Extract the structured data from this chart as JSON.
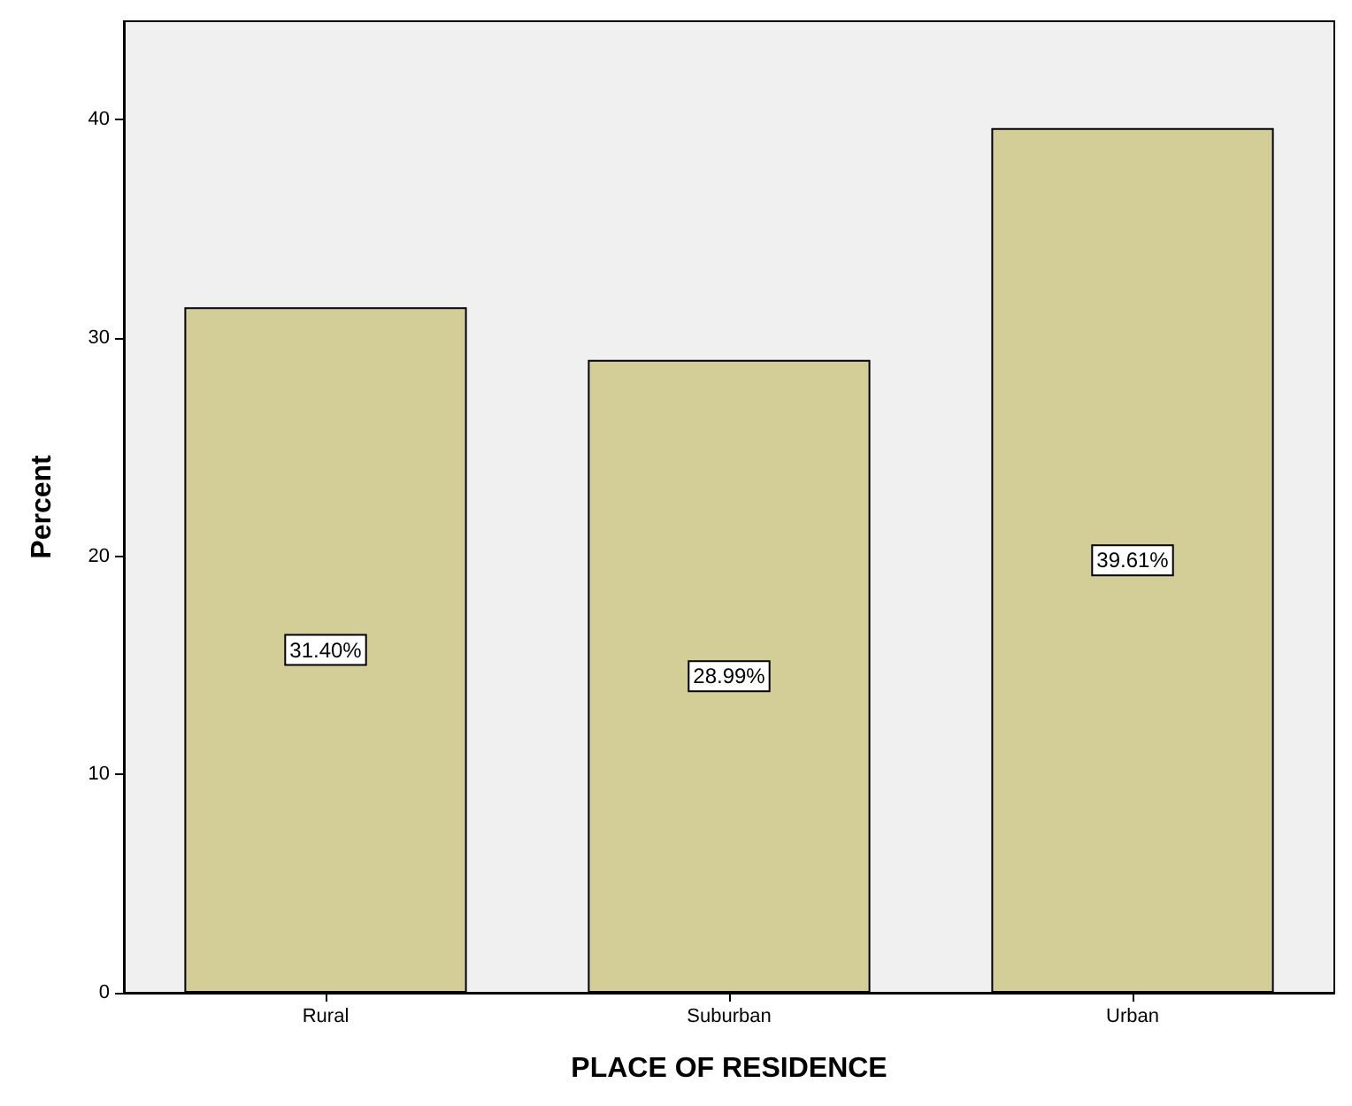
{
  "chart_data": {
    "type": "bar",
    "xlabel": "PLACE OF RESIDENCE",
    "ylabel": "Percent",
    "categories": [
      "Rural",
      "Suburban",
      "Urban"
    ],
    "values": [
      31.4,
      28.99,
      39.61
    ],
    "value_labels": [
      "31.40%",
      "28.99%",
      "39.61%"
    ],
    "color": "#d3ce97",
    "ylim": [
      0,
      44.5
    ],
    "yticks": [
      0,
      10,
      20,
      30,
      40
    ],
    "grid": false
  }
}
